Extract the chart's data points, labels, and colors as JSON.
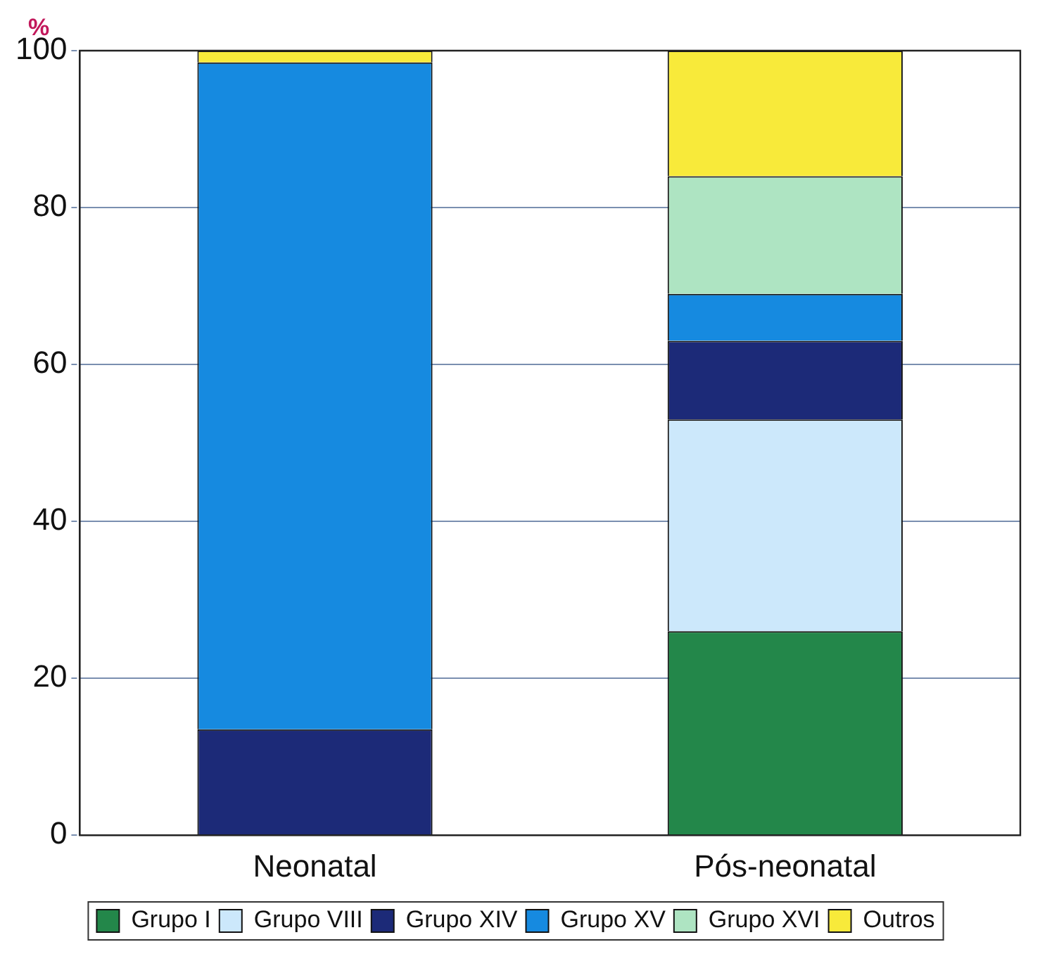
{
  "chart_data": {
    "type": "bar",
    "stacked": true,
    "ylabel": "%",
    "categories": [
      "Neonatal",
      "Pós-neonatal"
    ],
    "series": [
      {
        "name": "Grupo I",
        "color": "#23874a",
        "values": [
          0,
          26
        ]
      },
      {
        "name": "Grupo VIII",
        "color": "#cce8fb",
        "values": [
          0,
          27
        ]
      },
      {
        "name": "Grupo XIV",
        "color": "#1c2a78",
        "values": [
          13.5,
          10
        ]
      },
      {
        "name": "Grupo XV",
        "color": "#168ae0",
        "values": [
          85,
          6
        ]
      },
      {
        "name": "Grupo XVI",
        "color": "#aee4c2",
        "values": [
          0,
          15
        ]
      },
      {
        "name": "Outros",
        "color": "#f8ea3a",
        "values": [
          1.5,
          16
        ]
      }
    ],
    "ylim": [
      0,
      100
    ],
    "yticks": [
      0,
      20,
      40,
      60,
      80,
      100
    ],
    "grid": "y",
    "legend": "bottom"
  }
}
